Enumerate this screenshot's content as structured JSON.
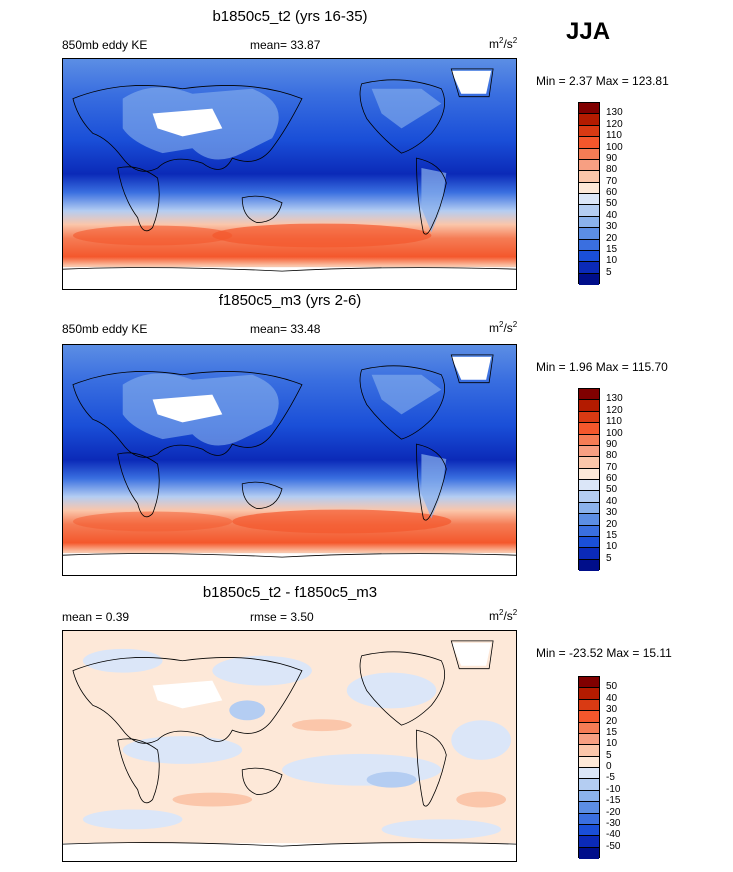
{
  "season": "JJA",
  "panels": [
    {
      "id": "top",
      "title": "b1850c5_t2 (yrs 16-35)",
      "left_label": "850mb eddy KE",
      "center_label": "mean=  33.87",
      "units_base": "m",
      "units_exp": "2",
      "units_tail": "/s",
      "units_exp2": "2",
      "minmax": "Min =  2.37 Max = 123.81",
      "colorbar": [
        "130",
        "120",
        "110",
        "100",
        "90",
        "80",
        "70",
        "60",
        "50",
        "40",
        "30",
        "20",
        "15",
        "10",
        "5"
      ],
      "colors": [
        "#800000",
        "#b31b00",
        "#d93a13",
        "#f4572c",
        "#f57c55",
        "#f79f82",
        "#fbc6aa",
        "#fde8d8",
        "#dbe6f8",
        "#b4cdf2",
        "#8bb2ec",
        "#5c8ee4",
        "#3a6fe0",
        "#1a4fd8",
        "#0b2ab8",
        "#000e8a"
      ],
      "mean_value": 33.87
    },
    {
      "id": "middle",
      "title": "f1850c5_m3 (yrs 2-6)",
      "left_label": "850mb eddy KE",
      "center_label": "mean=  33.48",
      "units_base": "m",
      "units_exp": "2",
      "units_tail": "/s",
      "units_exp2": "2",
      "minmax": "Min =  1.96 Max = 115.70",
      "colorbar": [
        "130",
        "120",
        "110",
        "100",
        "90",
        "80",
        "70",
        "60",
        "50",
        "40",
        "30",
        "20",
        "15",
        "10",
        "5"
      ],
      "colors": [
        "#800000",
        "#b31b00",
        "#d93a13",
        "#f4572c",
        "#f57c55",
        "#f79f82",
        "#fbc6aa",
        "#fde8d8",
        "#dbe6f8",
        "#b4cdf2",
        "#8bb2ec",
        "#5c8ee4",
        "#3a6fe0",
        "#1a4fd8",
        "#0b2ab8",
        "#000e8a"
      ],
      "mean_value": 33.48
    },
    {
      "id": "bottom",
      "title": "b1850c5_t2 - f1850c5_m3",
      "left_label": "mean =   0.39",
      "center_label": "rmse =   3.50",
      "units_base": "m",
      "units_exp": "2",
      "units_tail": "/s",
      "units_exp2": "2",
      "minmax": "Min = -23.52 Max =  15.11",
      "colorbar": [
        "50",
        "40",
        "30",
        "20",
        "15",
        "10",
        "5",
        "0",
        "-5",
        "-10",
        "-15",
        "-20",
        "-30",
        "-40",
        "-50"
      ],
      "colors": [
        "#800000",
        "#b31b00",
        "#d93a13",
        "#f4572c",
        "#f57c55",
        "#f79f82",
        "#fbc6aa",
        "#fde8d8",
        "#dbe6f8",
        "#b4cdf2",
        "#8bb2ec",
        "#5c8ee4",
        "#3a6fe0",
        "#1a4fd8",
        "#0b2ab8",
        "#000e8a"
      ],
      "mean_value": 0.39
    }
  ]
}
